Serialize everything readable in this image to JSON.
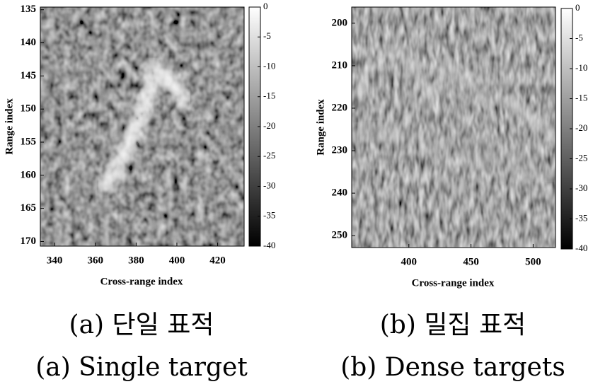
{
  "chart_data": [
    {
      "type": "heatmap",
      "xlabel": "Cross-range index",
      "ylabel": "Range index",
      "xlim": [
        333,
        433
      ],
      "xticks": [
        340,
        360,
        380,
        400,
        420
      ],
      "ylim": [
        134.6,
        170.7
      ],
      "yticks": [
        135,
        140,
        145,
        150,
        155,
        160,
        165,
        170
      ],
      "y_reversed": true,
      "colormap": "gray",
      "colorbar": {
        "lim": [
          -40,
          0
        ],
        "ticks": [
          0,
          -5,
          -10,
          -15,
          -20,
          -25,
          -30,
          -35,
          -40
        ]
      },
      "caption": [
        "(a) 단일 표적",
        "(a) Single target"
      ]
    },
    {
      "type": "heatmap",
      "xlabel": "Cross-range index",
      "ylabel": "Range index",
      "xlim": [
        354,
        518
      ],
      "xticks": [
        400,
        450,
        500
      ],
      "ylim": [
        196.2,
        252.8
      ],
      "yticks": [
        200,
        210,
        220,
        230,
        240,
        250
      ],
      "y_reversed": true,
      "colormap": "gray",
      "colorbar": {
        "lim": [
          -40,
          0
        ],
        "ticks": [
          0,
          -5,
          -10,
          -15,
          -20,
          -25,
          -30,
          -35,
          -40
        ]
      },
      "caption": [
        "(b) 밀집 표적",
        "(b) Dense targets"
      ]
    }
  ]
}
